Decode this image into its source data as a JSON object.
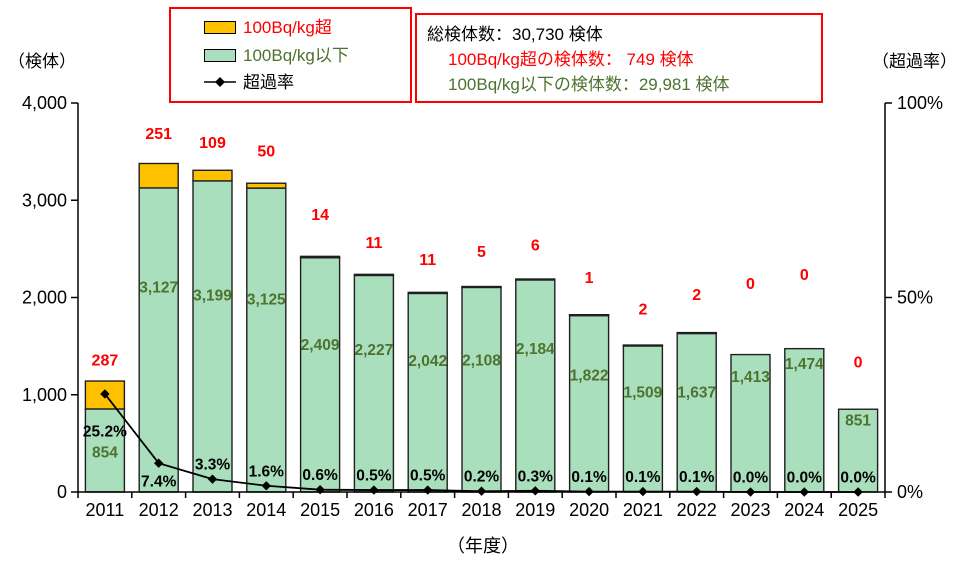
{
  "left_axis": {
    "unit_label": "（検体）",
    "tick_values": [
      0,
      1000,
      2000,
      3000,
      4000
    ],
    "ticks": [
      "0",
      "1,000",
      "2,000",
      "3,000",
      "4,000"
    ]
  },
  "right_axis": {
    "unit_label": "（超過率）",
    "tick_values": [
      0,
      50,
      100
    ],
    "ticks": [
      "0%",
      "50%",
      "100%"
    ]
  },
  "x_axis": {
    "unit_label": "（年度）"
  },
  "legend": {
    "exceed_label": "100Bq/kg超",
    "below_label": "100Bq/kg以下",
    "rate_label": "超過率"
  },
  "summary_box": {
    "total": "総検体数：30,730 検体",
    "exceed": "100Bq/kg超の検体数： 749 検体",
    "below": "100Bq/kg以下の検体数：29,981 検体"
  },
  "colors": {
    "red_accent": "#FF0000",
    "exceed_fill": "#FFC000",
    "below_fill": "#A9DFBC",
    "below_text": "#4E7230",
    "bar_stroke": "#1F1F1F",
    "axis": "#000000"
  },
  "chart_data": {
    "type": "bar",
    "subtype": "stacked-bar-with-line-overlay",
    "categories": [
      "2011",
      "2012",
      "2013",
      "2014",
      "2015",
      "2016",
      "2017",
      "2018",
      "2019",
      "2020",
      "2021",
      "2022",
      "2023",
      "2024",
      "2025"
    ],
    "series": [
      {
        "name": "100Bq/kg以下",
        "role": "below",
        "type": "bar",
        "stack": "samples",
        "values": [
          854,
          3127,
          3199,
          3125,
          2409,
          2227,
          2042,
          2108,
          2184,
          1822,
          1509,
          1637,
          1413,
          1474,
          851
        ]
      },
      {
        "name": "100Bq/kg超",
        "role": "exceed",
        "type": "bar",
        "stack": "samples",
        "values": [
          287,
          251,
          109,
          50,
          14,
          11,
          11,
          5,
          6,
          1,
          2,
          2,
          0,
          0,
          0
        ]
      },
      {
        "name": "超過率",
        "role": "rate",
        "type": "line",
        "axis": "right",
        "values": [
          25.2,
          7.4,
          3.3,
          1.6,
          0.6,
          0.5,
          0.5,
          0.2,
          0.3,
          0.1,
          0.1,
          0.1,
          0.0,
          0.0,
          0.0
        ]
      }
    ],
    "ylim_left": [
      0,
      4000
    ],
    "ylim_right": [
      0,
      100
    ],
    "grid": false,
    "legend_position": "top-left",
    "label_hints": {
      "exceed_dy": [
        -20,
        -29,
        -27,
        -31,
        -41,
        -31,
        -32,
        -34,
        -33,
        -36,
        -35,
        -37,
        -70,
        -73,
        -46
      ],
      "below_dy": [
        44,
        100,
        115,
        112,
        88,
        75,
        68,
        74,
        70,
        61,
        48,
        60,
        23,
        16,
        12
      ]
    }
  }
}
